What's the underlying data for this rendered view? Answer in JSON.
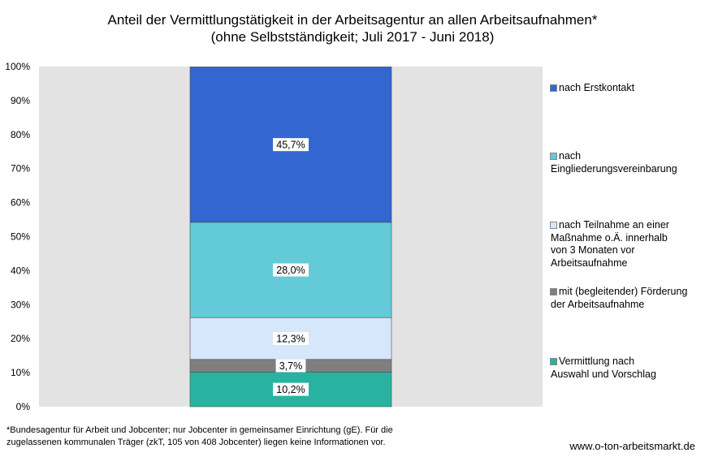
{
  "chart_data": {
    "type": "bar",
    "stacked": true,
    "title": "Anteil der Vermittlungstätigkeit in der Arbeitsagentur an allen Arbeitsaufnahmen*",
    "subtitle": "(ohne Selbstständigkeit; Juli 2017 - Juni 2018)",
    "ylim": [
      0,
      100
    ],
    "yticks": [
      "0%",
      "10%",
      "20%",
      "30%",
      "40%",
      "50%",
      "60%",
      "70%",
      "80%",
      "90%",
      "100%"
    ],
    "grid": false,
    "legend_position": "right",
    "series": [
      {
        "name": "Vermittlung nach Auswahl und Vorschlag",
        "value": 10.2,
        "label": "10,2%",
        "color": "#27b3a0"
      },
      {
        "name": "mit (begleitender) Förderung der Arbeitsaufnahme",
        "value": 3.7,
        "label": "3,7%",
        "color": "#7f7f7f"
      },
      {
        "name": "nach Teilnahme an einer Maßnahme o.Ä. innerhalb von 3 Monaten vor Arbeitsaufnahme",
        "value": 12.3,
        "label": "12,3%",
        "color": "#d6e6fb"
      },
      {
        "name": "nach Eingliederungsvereinbarung",
        "value": 28.0,
        "label": "28,0%",
        "color": "#63cbd8"
      },
      {
        "name": "nach Erstkontakt",
        "value": 45.7,
        "label": "45,7%",
        "color": "#3366d0"
      }
    ],
    "plot_background": "#e3e3e3"
  },
  "legend": {
    "items": [
      {
        "lines": [
          "nach Erstkontakt"
        ],
        "color": "#3366d0"
      },
      {
        "lines": [
          "nach",
          "Eingliederungsvereinbarung"
        ],
        "color": "#63cbd8"
      },
      {
        "lines": [
          "nach Teilnahme an einer",
          "Maßnahme o.Ä. innerhalb",
          "von 3 Monaten vor",
          "Arbeitsaufnahme"
        ],
        "color": "#d6e6fb"
      },
      {
        "lines": [
          "mit (begleitender) Förderung",
          "der Arbeitsaufnahme"
        ],
        "color": "#7f7f7f"
      },
      {
        "lines": [
          "Vermittlung nach",
          "Auswahl und Vorschlag"
        ],
        "color": "#27b3a0"
      }
    ]
  },
  "footnote": {
    "line1": "*Bundesagentur für Arbeit und Jobcenter; nur Jobcenter in gemeinsamer Einrichtung (gE). Für die",
    "line2": "zugelassenen kommunalen Träger (zkT, 105 von 408 Jobcenter) liegen keine Informationen vor."
  },
  "source": "www.o-ton-arbeitsmarkt.de"
}
